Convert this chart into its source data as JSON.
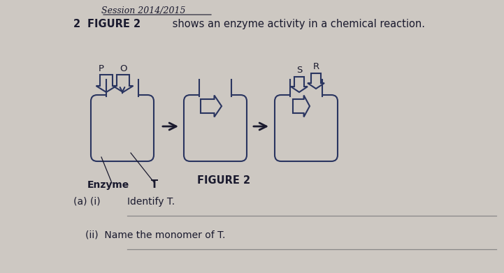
{
  "bg_color": "#cdc8c2",
  "text_color": "#1a1a2e",
  "session_text": "Session 2014/2015",
  "question_num": "2",
  "question_text": "FIGURE 2",
  "question_rest": " shows an enzyme activity in a chemical reaction.",
  "figure_label": "FIGURE 2",
  "sub_a_i_left": "(a) (i)",
  "sub_a_i_right": "Identify T.",
  "sub_a_ii": "(ii)  Name the monomer of T.",
  "label_enzyme": "Enzyme",
  "label_T": "T",
  "label_P": "P",
  "label_O": "O",
  "label_R": "R",
  "label_S": "S",
  "enzyme_color": "#2a3560",
  "arrow_color": "#1a1a2e"
}
